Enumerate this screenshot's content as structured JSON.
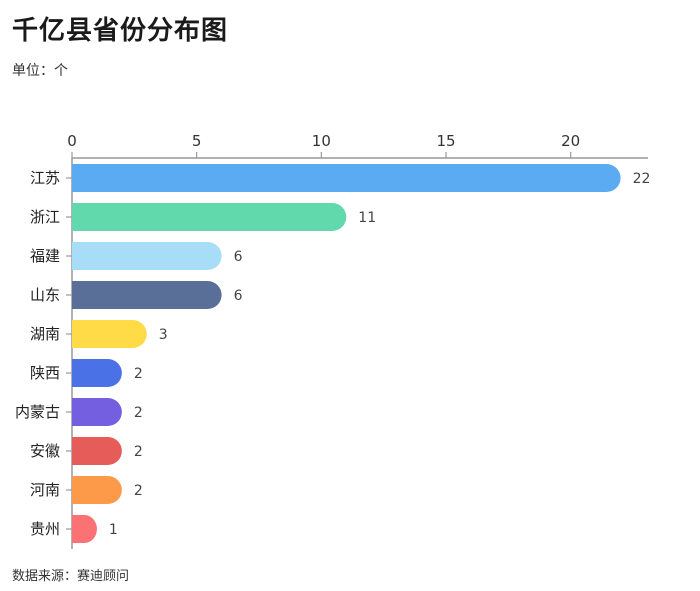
{
  "title": "千亿县省份分布图",
  "subtitle": "单位：个",
  "source": "数据来源：赛迪顾问",
  "chart_data": {
    "type": "bar",
    "orientation": "horizontal",
    "categories": [
      "江苏",
      "浙江",
      "福建",
      "山东",
      "湖南",
      "陕西",
      "内蒙古",
      "安徽",
      "河南",
      "贵州"
    ],
    "values": [
      22,
      11,
      6,
      6,
      3,
      2,
      2,
      2,
      2,
      1
    ],
    "colors": [
      "#5aabf2",
      "#62d9ac",
      "#a8ddf8",
      "#5a6f98",
      "#fedb47",
      "#4a72e6",
      "#735fe0",
      "#e55c58",
      "#fd9a4a",
      "#fb7274"
    ],
    "xticks": [
      0,
      5,
      10,
      15,
      20
    ],
    "xlim": [
      0,
      23.1
    ],
    "axis_position": "top",
    "grid": false,
    "legend": "none"
  }
}
